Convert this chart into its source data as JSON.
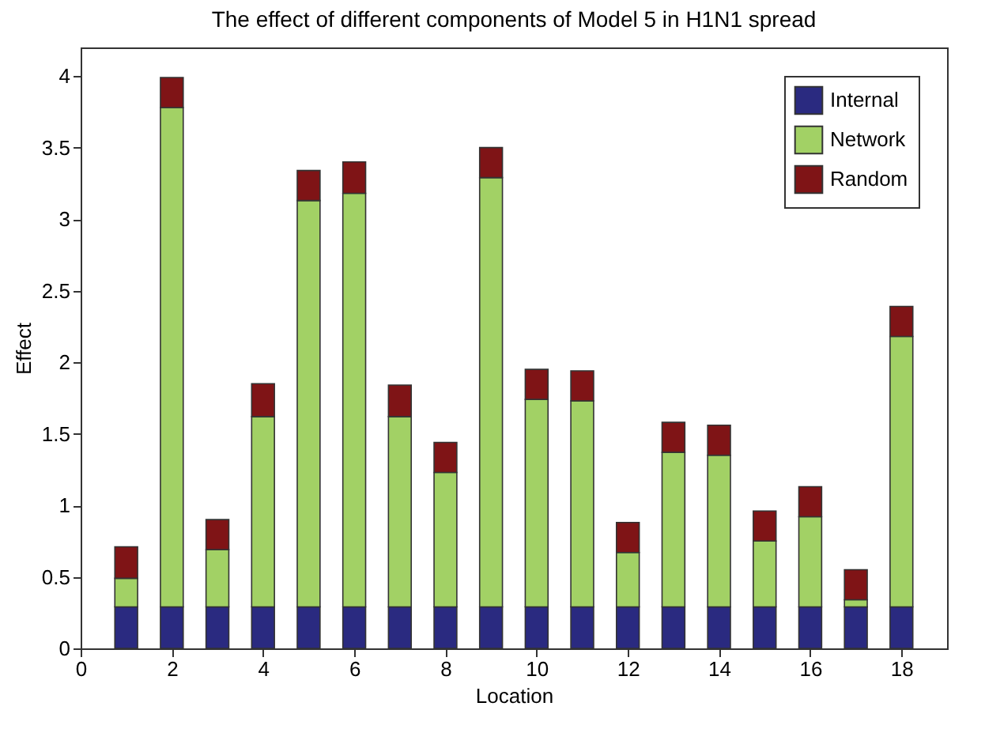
{
  "chart_data": {
    "type": "bar",
    "title": "The effect of different components of Model 5 in H1N1 spread",
    "xlabel": "Location",
    "ylabel": "Effect",
    "x": [
      1,
      2,
      3,
      4,
      5,
      6,
      7,
      8,
      9,
      10,
      11,
      12,
      13,
      14,
      15,
      16,
      17,
      18
    ],
    "stacked": true,
    "series": [
      {
        "name": "Internal",
        "color": "#2a2a80",
        "values": [
          0.29,
          0.29,
          0.29,
          0.29,
          0.29,
          0.29,
          0.29,
          0.29,
          0.29,
          0.29,
          0.29,
          0.29,
          0.29,
          0.29,
          0.29,
          0.29,
          0.29,
          0.29
        ]
      },
      {
        "name": "Network",
        "color": "#a2d165",
        "values": [
          0.2,
          3.49,
          0.4,
          1.33,
          2.84,
          2.89,
          1.33,
          0.94,
          3.0,
          1.45,
          1.44,
          0.38,
          1.08,
          1.06,
          0.46,
          0.63,
          0.05,
          1.89
        ]
      },
      {
        "name": "Random",
        "color": "#7f1416",
        "values": [
          0.22,
          0.21,
          0.21,
          0.23,
          0.21,
          0.22,
          0.22,
          0.21,
          0.21,
          0.21,
          0.21,
          0.21,
          0.21,
          0.21,
          0.21,
          0.21,
          0.21,
          0.21
        ]
      }
    ],
    "xlim": [
      0,
      19
    ],
    "xticks": [
      0,
      2,
      4,
      6,
      8,
      10,
      12,
      14,
      16,
      18
    ],
    "ylim": [
      0,
      4.2
    ],
    "yticks": [
      0,
      0.5,
      1,
      1.5,
      2,
      2.5,
      3,
      3.5,
      4
    ],
    "grid": false,
    "legend": "top right"
  }
}
